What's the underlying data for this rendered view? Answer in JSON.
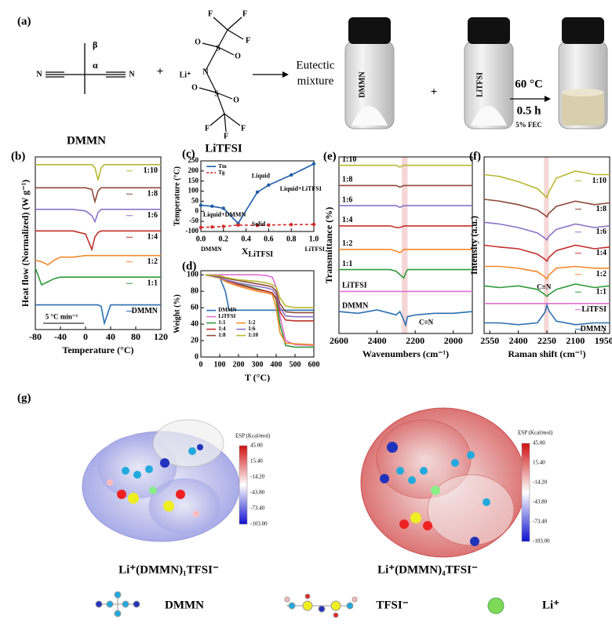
{
  "panel_a": {
    "label": "(a)",
    "dmmn_atoms": [
      "N",
      "N"
    ],
    "beta": "β",
    "alpha": "α",
    "dmmn_label": "DMMN",
    "plus": "+",
    "litfsi_atoms": [
      "F",
      "F",
      "F",
      "O",
      "S",
      "O",
      "Li⁺",
      "N",
      "O",
      "S",
      "O",
      "F",
      "F",
      "F"
    ],
    "litfsi_label": "LiTFSI",
    "arrow_text_1": "Eutectic",
    "arrow_text_2": "mixture",
    "vial_1": "DMMN",
    "vial_2": "LiTFSI",
    "condition_temp": "60 °C",
    "condition_time": "0.5 h",
    "condition_additive": "5% FEC"
  },
  "chart_data": [
    {
      "type": "line",
      "panel_label": "(b)",
      "x_label": "Temperature (°C)",
      "y_label": "Heat flow (Normalized) (W g⁻¹)",
      "annotations": [
        "5 °C min⁻¹"
      ],
      "x": [
        -80,
        -70,
        -60,
        -50,
        -40,
        -20,
        0,
        10,
        15,
        20,
        25,
        30,
        40,
        60,
        80,
        100,
        120
      ],
      "xlim": [
        -80,
        120
      ],
      "xticks": [
        -80,
        -40,
        0,
        40,
        80,
        120
      ],
      "ylim": [
        -12,
        100
      ],
      "series": [
        {
          "name": "1:10",
          "color": "#b8b830",
          "values": [
            95,
            95,
            95,
            95,
            95,
            95,
            95,
            95,
            93,
            85,
            93,
            95,
            95,
            95,
            95,
            95,
            95
          ]
        },
        {
          "name": "1:8",
          "color": "#8e4b3b",
          "values": [
            80,
            80,
            80,
            80,
            80,
            80,
            80,
            79,
            71,
            78,
            80,
            80,
            80,
            80,
            80,
            80,
            80
          ]
        },
        {
          "name": "1:6",
          "color": "#8b72c6",
          "values": [
            66,
            66,
            66,
            66,
            66,
            66,
            65,
            62,
            58,
            64,
            66,
            66,
            66,
            66,
            66,
            66,
            66
          ]
        },
        {
          "name": "1:4",
          "color": "#c2302c",
          "values": [
            52,
            52,
            52,
            52,
            52,
            52,
            50,
            40,
            48,
            51,
            52,
            52,
            52,
            52,
            52,
            52,
            52
          ]
        },
        {
          "name": "1:2",
          "color": "#f28a2a",
          "values": [
            33,
            32,
            30,
            33,
            35,
            35,
            36,
            36,
            36,
            36,
            36,
            36,
            36,
            36,
            36,
            36,
            36
          ]
        },
        {
          "name": "1:1",
          "color": "#2e9b3a",
          "values": [
            28,
            17,
            19,
            21,
            22,
            22,
            22,
            22,
            22,
            22,
            22,
            22,
            22,
            22,
            22,
            22,
            22
          ]
        },
        {
          "name": "DMMN",
          "color": "#2b70b2",
          "values": [
            4,
            4,
            4,
            4,
            4,
            4,
            4,
            4,
            4,
            4,
            3,
            -8,
            4,
            4,
            4,
            4,
            4
          ]
        }
      ]
    },
    {
      "type": "line",
      "panel_label": "(c)",
      "x_label": "X",
      "x_label_sub": "LiTFSI",
      "y_label": "Temperature (°C)",
      "legend": true,
      "markers": true,
      "annotations": [
        "Liquid",
        "Liquid+LiTFSI",
        "Liquid+DMMN",
        "Solid",
        "DMMN",
        "LiTFSI"
      ],
      "xlim": [
        0,
        1
      ],
      "xticks": [
        {
          "value": 0,
          "label": "0.0"
        },
        0.2,
        0.4,
        0.6,
        0.8,
        {
          "value": 1,
          "label": "1.0"
        }
      ],
      "ylim": [
        -100,
        250
      ],
      "yticks": [
        -100,
        -50,
        0,
        50,
        100,
        150,
        200,
        250
      ],
      "series": [
        {
          "name": "Tm",
          "color": "#1f5fa8",
          "x": [
            0,
            0.1,
            0.2,
            0.33,
            0.5,
            0.6,
            0.8,
            1
          ],
          "values": [
            30,
            25,
            15,
            -60,
            95,
            130,
            180,
            235
          ]
        },
        {
          "name": "Tg",
          "color": "#d42a2a",
          "dashed": true,
          "x": [
            0,
            0.1,
            0.2,
            0.33,
            0.5,
            0.6,
            0.8,
            1
          ],
          "values": [
            -80,
            -78,
            -75,
            -68,
            -70,
            -68,
            -66,
            -65
          ]
        }
      ]
    },
    {
      "type": "line",
      "panel_label": "(d)",
      "x_label": "T (°C)",
      "y_label": "Weight (%)",
      "legend": true,
      "x": [
        25,
        100,
        130,
        150,
        200,
        250,
        300,
        350,
        380,
        400,
        420,
        450,
        500,
        600
      ],
      "xlim": [
        0,
        600
      ],
      "xticks": [
        0,
        100,
        200,
        300,
        400,
        500,
        600
      ],
      "ylim": [
        0,
        105
      ],
      "yticks": [
        0,
        20,
        40,
        60,
        80,
        100
      ],
      "series": [
        {
          "name": "DMMN",
          "color": "#2b70b2",
          "values": [
            100,
            97,
            80,
            57,
            57,
            57,
            57,
            57,
            57,
            57,
            57,
            57,
            57,
            57
          ]
        },
        {
          "name": "LiTFSI",
          "color": "#e070d0",
          "values": [
            100,
            100,
            100,
            100,
            100,
            100,
            100,
            99,
            97,
            85,
            50,
            20,
            15,
            14
          ]
        },
        {
          "name": "1:1",
          "color": "#2e9b3a",
          "values": [
            100,
            96,
            93,
            92,
            89,
            86,
            83,
            80,
            78,
            70,
            40,
            14,
            12,
            12
          ]
        },
        {
          "name": "1:2",
          "color": "#f28a2a",
          "values": [
            100,
            96,
            92,
            90,
            86,
            83,
            80,
            78,
            76,
            60,
            30,
            17,
            16,
            15
          ]
        },
        {
          "name": "1:4",
          "color": "#c2302c",
          "values": [
            100,
            97,
            94,
            92,
            88,
            85,
            82,
            80,
            78,
            72,
            55,
            45,
            44,
            44
          ]
        },
        {
          "name": "1:6",
          "color": "#8b72c6",
          "values": [
            100,
            97,
            94,
            93,
            90,
            88,
            86,
            84,
            82,
            76,
            60,
            50,
            49,
            49
          ]
        },
        {
          "name": "1:8",
          "color": "#8e4b3b",
          "values": [
            100,
            98,
            96,
            95,
            93,
            91,
            89,
            87,
            85,
            80,
            65,
            55,
            54,
            54
          ]
        },
        {
          "name": "1:10",
          "color": "#b8b830",
          "values": [
            100,
            99,
            97,
            96,
            94,
            93,
            92,
            90,
            88,
            85,
            72,
            62,
            60,
            60
          ]
        }
      ]
    },
    {
      "type": "line",
      "panel_label": "(e)",
      "x_label": "Wavenumbers (cm⁻¹)",
      "y_label": "Transmittance (%)",
      "annotations": [
        "C≡N"
      ],
      "highlight_x": [
        2270,
        2240
      ],
      "x": [
        2600,
        2500,
        2400,
        2330,
        2300,
        2280,
        2260,
        2250,
        2240,
        2200,
        2100,
        2000,
        1900
      ],
      "xlim": [
        2600,
        1900
      ],
      "xticks": [
        2600,
        2400,
        2200,
        2000
      ],
      "ylim": [
        -5,
        100
      ],
      "series": [
        {
          "name": "1:10",
          "color": "#b8b830",
          "values": [
            95,
            95,
            95,
            95,
            95,
            94,
            95,
            95,
            95,
            95,
            95,
            95,
            95
          ]
        },
        {
          "name": "1:8",
          "color": "#8e4b3b",
          "values": [
            83,
            83,
            83,
            83,
            83,
            82,
            83,
            83,
            83,
            83,
            83,
            83,
            83
          ]
        },
        {
          "name": "1:6",
          "color": "#8b72c6",
          "values": [
            71,
            71,
            71,
            71,
            71,
            70,
            71,
            71,
            71,
            71,
            71,
            71,
            71
          ]
        },
        {
          "name": "1:4",
          "color": "#c2302c",
          "values": [
            59,
            59,
            59,
            59,
            58,
            58,
            59,
            59,
            59,
            59,
            59,
            59,
            59
          ]
        },
        {
          "name": "1:2",
          "color": "#f28a2a",
          "values": [
            45,
            45,
            45,
            45,
            44,
            43,
            45,
            45,
            45,
            45,
            45,
            45,
            45
          ]
        },
        {
          "name": "1:1",
          "color": "#2e9b3a",
          "values": [
            33,
            33,
            33,
            33,
            32,
            30,
            28,
            31,
            33,
            33,
            33,
            33,
            33
          ]
        },
        {
          "name": "LiTFSI",
          "color": "#e070d0",
          "values": [
            20,
            20,
            20,
            20,
            20,
            20,
            20,
            20,
            20,
            20,
            20,
            20,
            20
          ]
        },
        {
          "name": "DMMN",
          "color": "#2b70b2",
          "values": [
            8,
            7,
            9,
            7,
            6,
            8,
            3,
            0,
            5,
            6,
            7,
            7,
            8
          ]
        }
      ]
    },
    {
      "type": "line",
      "panel_label": "(f)",
      "x_label": "Raman shift (cm⁻¹)",
      "y_label": "Intensity (a.u.)",
      "annotations": [
        "C≡N"
      ],
      "highlight_x": [
        2265,
        2240
      ],
      "x": [
        2580,
        2500,
        2400,
        2300,
        2260,
        2250,
        2240,
        2200,
        2100,
        2000,
        1920
      ],
      "xlim": [
        2580,
        1920
      ],
      "xticks": [
        2550,
        2400,
        2250,
        2100,
        1950
      ],
      "ylim": [
        0,
        100
      ],
      "series": [
        {
          "name": "1:10",
          "color": "#b8b830",
          "values": [
            90,
            89,
            86,
            82,
            78,
            77,
            80,
            88,
            92,
            90,
            90
          ]
        },
        {
          "name": "1:8",
          "color": "#8e4b3b",
          "values": [
            76,
            75,
            73,
            70,
            67,
            66,
            68,
            72,
            75,
            73,
            74
          ]
        },
        {
          "name": "1:6",
          "color": "#8b72c6",
          "values": [
            63,
            62,
            60,
            57,
            54,
            53,
            55,
            59,
            62,
            60,
            61
          ]
        },
        {
          "name": "1:4",
          "color": "#c2302c",
          "values": [
            50,
            49,
            48,
            45,
            42,
            41,
            43,
            47,
            50,
            48,
            49
          ]
        },
        {
          "name": "1:2",
          "color": "#f28a2a",
          "values": [
            38,
            38,
            37,
            35,
            32,
            31,
            33,
            37,
            38,
            37,
            37
          ]
        },
        {
          "name": "1:1",
          "color": "#2e9b3a",
          "values": [
            27,
            26,
            27,
            25,
            22,
            21,
            22,
            25,
            28,
            26,
            27
          ]
        },
        {
          "name": "LiTFSI",
          "color": "#e070d0",
          "values": [
            17,
            17,
            17,
            17,
            17,
            17,
            17,
            17,
            17,
            17,
            17
          ]
        },
        {
          "name": "DMMN",
          "color": "#2b70b2",
          "values": [
            6,
            6,
            5,
            6,
            12,
            16,
            13,
            7,
            5,
            6,
            6
          ]
        }
      ]
    }
  ],
  "panel_g": {
    "label": "(g)",
    "colorbar_title": "ESP (Kcal/mol)",
    "colorbar_ticks": [
      "45.00",
      "15.40",
      "-14.20",
      "-43.80",
      "-73.40",
      "-103.00"
    ],
    "caption_left": "Li⁺(DMMN)₁TFSI⁻",
    "caption_right": "Li⁺(DMMN)₄TFSI⁻",
    "legend_dmmn": "DMMN",
    "legend_tfsi": "TFSI⁻",
    "legend_li": "Li⁺"
  }
}
